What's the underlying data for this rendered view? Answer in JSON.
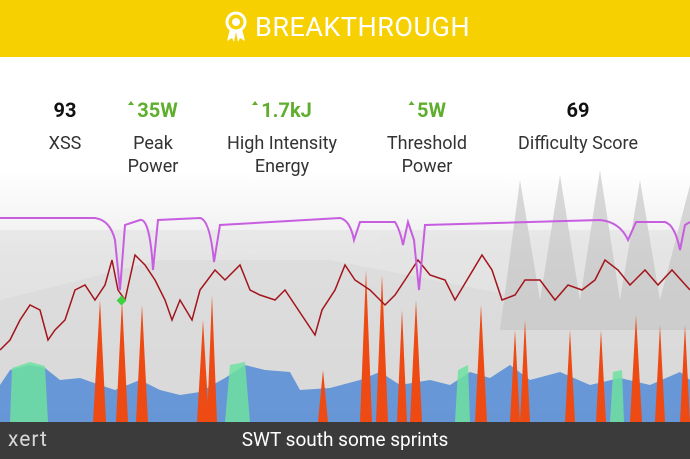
{
  "header": {
    "title": "BREAKTHROUGH"
  },
  "stats": [
    {
      "value": "93",
      "label": "XSS"
    },
    {
      "value": "35W",
      "label": "Peak Power"
    },
    {
      "value": "1.7kJ",
      "label": "High Intensity Energy"
    },
    {
      "value": "5W",
      "label": "Threshold Power"
    },
    {
      "value": "69",
      "label": "Difficulty Score"
    }
  ],
  "footer": {
    "logo": "xert",
    "title": "SWT south some sprints"
  }
}
